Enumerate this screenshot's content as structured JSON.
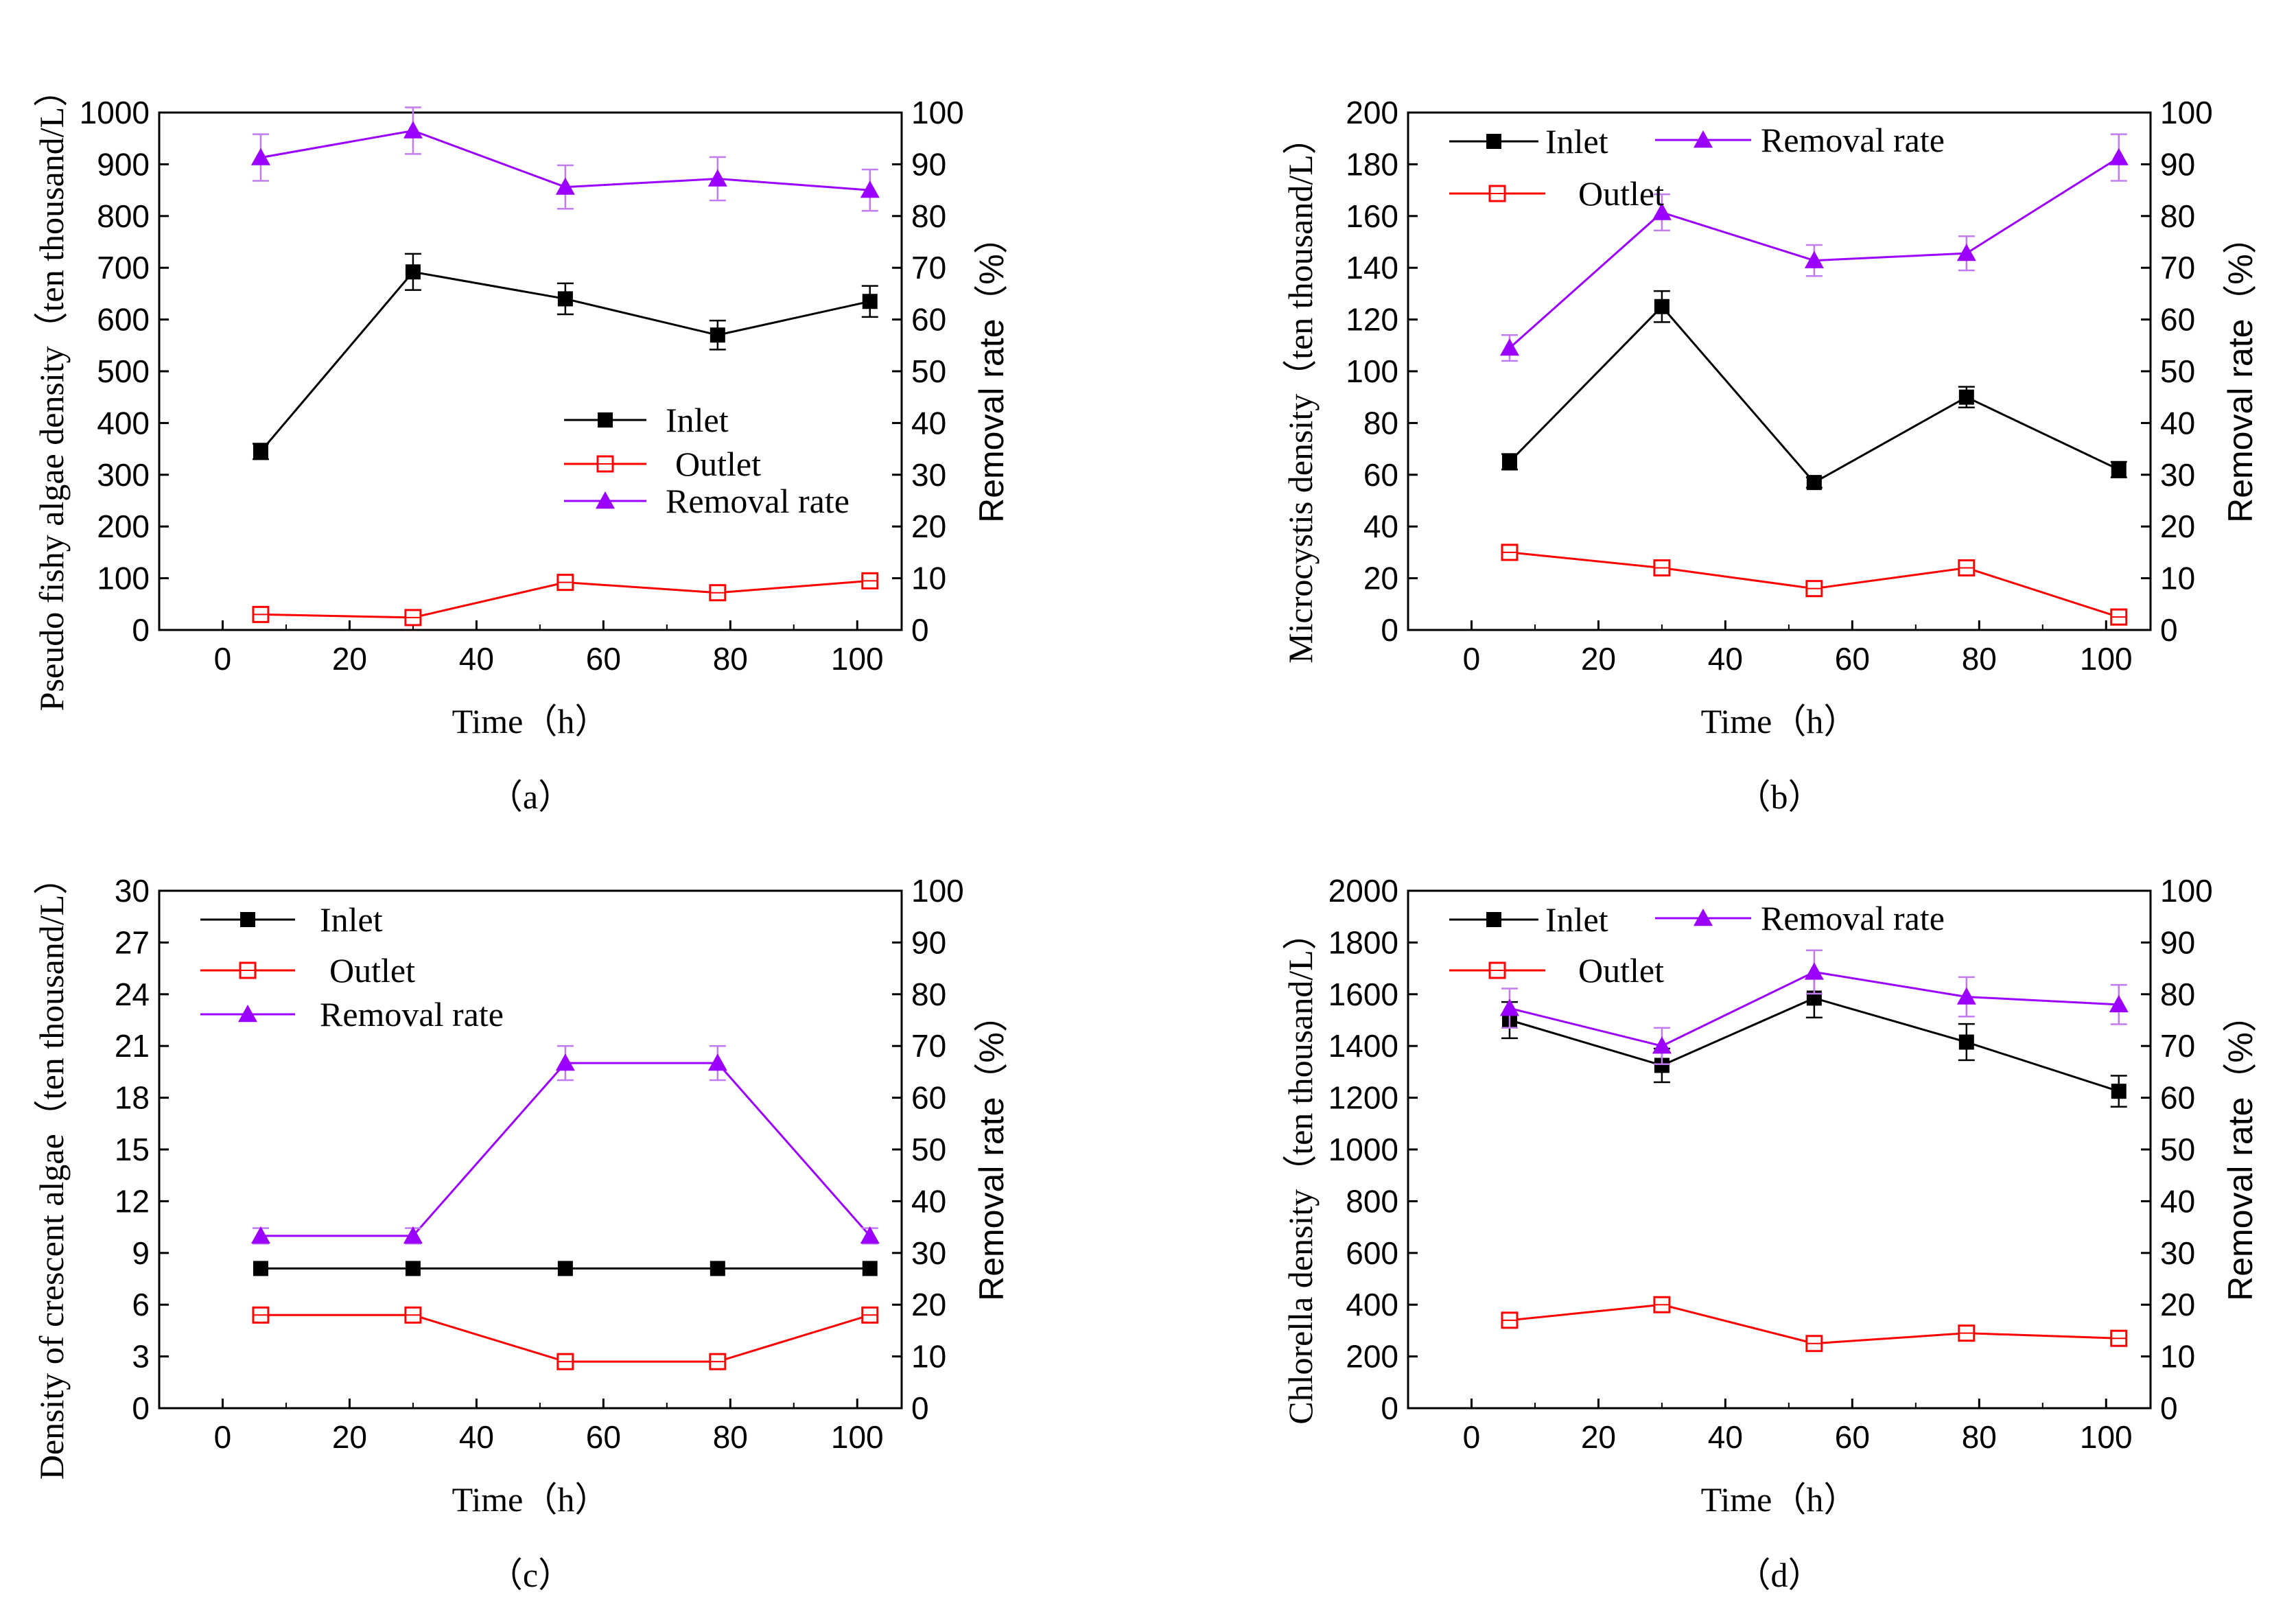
{
  "colors": {
    "inlet": "#000000",
    "outlet": "#ff0000",
    "removal": "#9b00ff",
    "removal_error": "#c07cf0",
    "inlet_error": "#000000",
    "outlet_error": "#ff8080"
  },
  "chart_data": [
    {
      "id": "a",
      "type": "line",
      "panel_label": "（a）",
      "xlabel": "Time（h）",
      "ylabel": "Pseudo fishy algae density（ten thousand/L）",
      "y2label": "Removal rate（%）",
      "xlim": [
        -10,
        107
      ],
      "xticks": [
        0,
        20,
        40,
        60,
        80,
        100
      ],
      "ylim": [
        0,
        1000
      ],
      "yticks": [
        0,
        100,
        200,
        300,
        400,
        500,
        600,
        700,
        800,
        900,
        1000
      ],
      "y2lim": [
        0,
        100
      ],
      "y2ticks": [
        0,
        10,
        20,
        30,
        40,
        50,
        60,
        70,
        80,
        90,
        100
      ],
      "legend_placement": "center-right",
      "x": [
        6,
        30,
        54,
        78,
        102
      ],
      "series": [
        {
          "name": "Inlet",
          "axis": "left",
          "marker": "filled-square",
          "values": [
            345,
            692,
            640,
            570,
            635
          ],
          "error": [
            15,
            35,
            30,
            28,
            30
          ]
        },
        {
          "name": "Outlet",
          "axis": "left",
          "marker": "open-square",
          "values": [
            30,
            24,
            92,
            72,
            95
          ],
          "error": [
            0,
            0,
            0,
            0,
            0
          ]
        },
        {
          "name": "Removal rate",
          "axis": "right",
          "marker": "filled-triangle",
          "values": [
            91.3,
            96.5,
            85.6,
            87.2,
            85.0
          ],
          "error": [
            4.5,
            4.5,
            4.2,
            4.2,
            4.0
          ]
        }
      ]
    },
    {
      "id": "b",
      "type": "line",
      "panel_label": "（b）",
      "xlabel": "Time（h）",
      "ylabel": "Microcystis density（ten thousand/L）",
      "y2label": "Removal rate（%）",
      "xlim": [
        -10,
        107
      ],
      "xticks": [
        0,
        20,
        40,
        60,
        80,
        100
      ],
      "ylim": [
        0,
        200
      ],
      "yticks": [
        0,
        20,
        40,
        60,
        80,
        100,
        120,
        140,
        160,
        180,
        200
      ],
      "y2lim": [
        0,
        100
      ],
      "y2ticks": [
        0,
        10,
        20,
        30,
        40,
        50,
        60,
        70,
        80,
        90,
        100
      ],
      "legend_placement": "top-left",
      "x": [
        6,
        30,
        54,
        78,
        102
      ],
      "series": [
        {
          "name": "Inlet",
          "axis": "left",
          "marker": "filled-square",
          "values": [
            65,
            125,
            57,
            90,
            62
          ],
          "error": [
            3,
            6,
            2,
            4,
            3
          ]
        },
        {
          "name": "Outlet",
          "axis": "left",
          "marker": "open-square",
          "values": [
            30,
            24,
            16,
            24,
            5
          ],
          "error": [
            0,
            0,
            0,
            0,
            0
          ]
        },
        {
          "name": "Removal rate",
          "axis": "right",
          "marker": "filled-triangle",
          "values": [
            54.5,
            80.7,
            71.4,
            72.8,
            91.3
          ],
          "error": [
            2.5,
            3.5,
            3.0,
            3.3,
            4.5
          ]
        }
      ]
    },
    {
      "id": "c",
      "type": "line",
      "panel_label": "（c）",
      "xlabel": "Time（h）",
      "ylabel": "Density of crescent algae（ten thousand/L）",
      "y2label": "Removal rate（%）",
      "xlim": [
        -10,
        107
      ],
      "xticks": [
        0,
        20,
        40,
        60,
        80,
        100
      ],
      "ylim": [
        0,
        30
      ],
      "yticks": [
        0,
        3,
        6,
        9,
        12,
        15,
        18,
        21,
        24,
        27,
        30
      ],
      "y2lim": [
        0,
        100
      ],
      "y2ticks": [
        0,
        10,
        20,
        30,
        40,
        50,
        60,
        70,
        80,
        90,
        100
      ],
      "legend_placement": "top-left",
      "x": [
        6,
        30,
        54,
        78,
        102
      ],
      "series": [
        {
          "name": "Inlet",
          "axis": "left",
          "marker": "filled-square",
          "values": [
            8.1,
            8.1,
            8.1,
            8.1,
            8.1
          ],
          "error": [
            0,
            0,
            0,
            0,
            0
          ]
        },
        {
          "name": "Outlet",
          "axis": "left",
          "marker": "open-square",
          "values": [
            5.4,
            5.4,
            2.7,
            2.7,
            5.4
          ],
          "error": [
            0,
            0,
            0,
            0,
            0
          ]
        },
        {
          "name": "Removal rate",
          "axis": "right",
          "marker": "filled-triangle",
          "values": [
            33.3,
            33.3,
            66.7,
            66.7,
            33.3
          ],
          "error": [
            1.5,
            1.5,
            3.3,
            3.3,
            1.5
          ]
        }
      ]
    },
    {
      "id": "d",
      "type": "line",
      "panel_label": "（d）",
      "xlabel": "Time（h）",
      "ylabel": "Chlorella density（ten thousand/L）",
      "y2label": "Removal rate（%）",
      "xlim": [
        -10,
        107
      ],
      "xticks": [
        0,
        20,
        40,
        60,
        80,
        100
      ],
      "ylim": [
        0,
        2000
      ],
      "yticks": [
        0,
        200,
        400,
        600,
        800,
        1000,
        1200,
        1400,
        1600,
        1800,
        2000
      ],
      "y2lim": [
        0,
        100
      ],
      "y2ticks": [
        0,
        10,
        20,
        30,
        40,
        50,
        60,
        70,
        80,
        90,
        100
      ],
      "legend_placement": "top-left",
      "x": [
        6,
        30,
        54,
        78,
        102
      ],
      "series": [
        {
          "name": "Inlet",
          "axis": "left",
          "marker": "filled-square",
          "values": [
            1500,
            1325,
            1585,
            1415,
            1225
          ],
          "error": [
            70,
            65,
            75,
            70,
            60
          ]
        },
        {
          "name": "Outlet",
          "axis": "left",
          "marker": "open-square",
          "values": [
            340,
            400,
            250,
            290,
            270
          ],
          "error": [
            0,
            0,
            0,
            0,
            0
          ]
        },
        {
          "name": "Removal rate",
          "axis": "right",
          "marker": "filled-triangle",
          "values": [
            77.3,
            70.0,
            84.3,
            79.5,
            78.0
          ],
          "error": [
            3.8,
            3.5,
            4.2,
            3.8,
            3.8
          ]
        }
      ]
    }
  ]
}
